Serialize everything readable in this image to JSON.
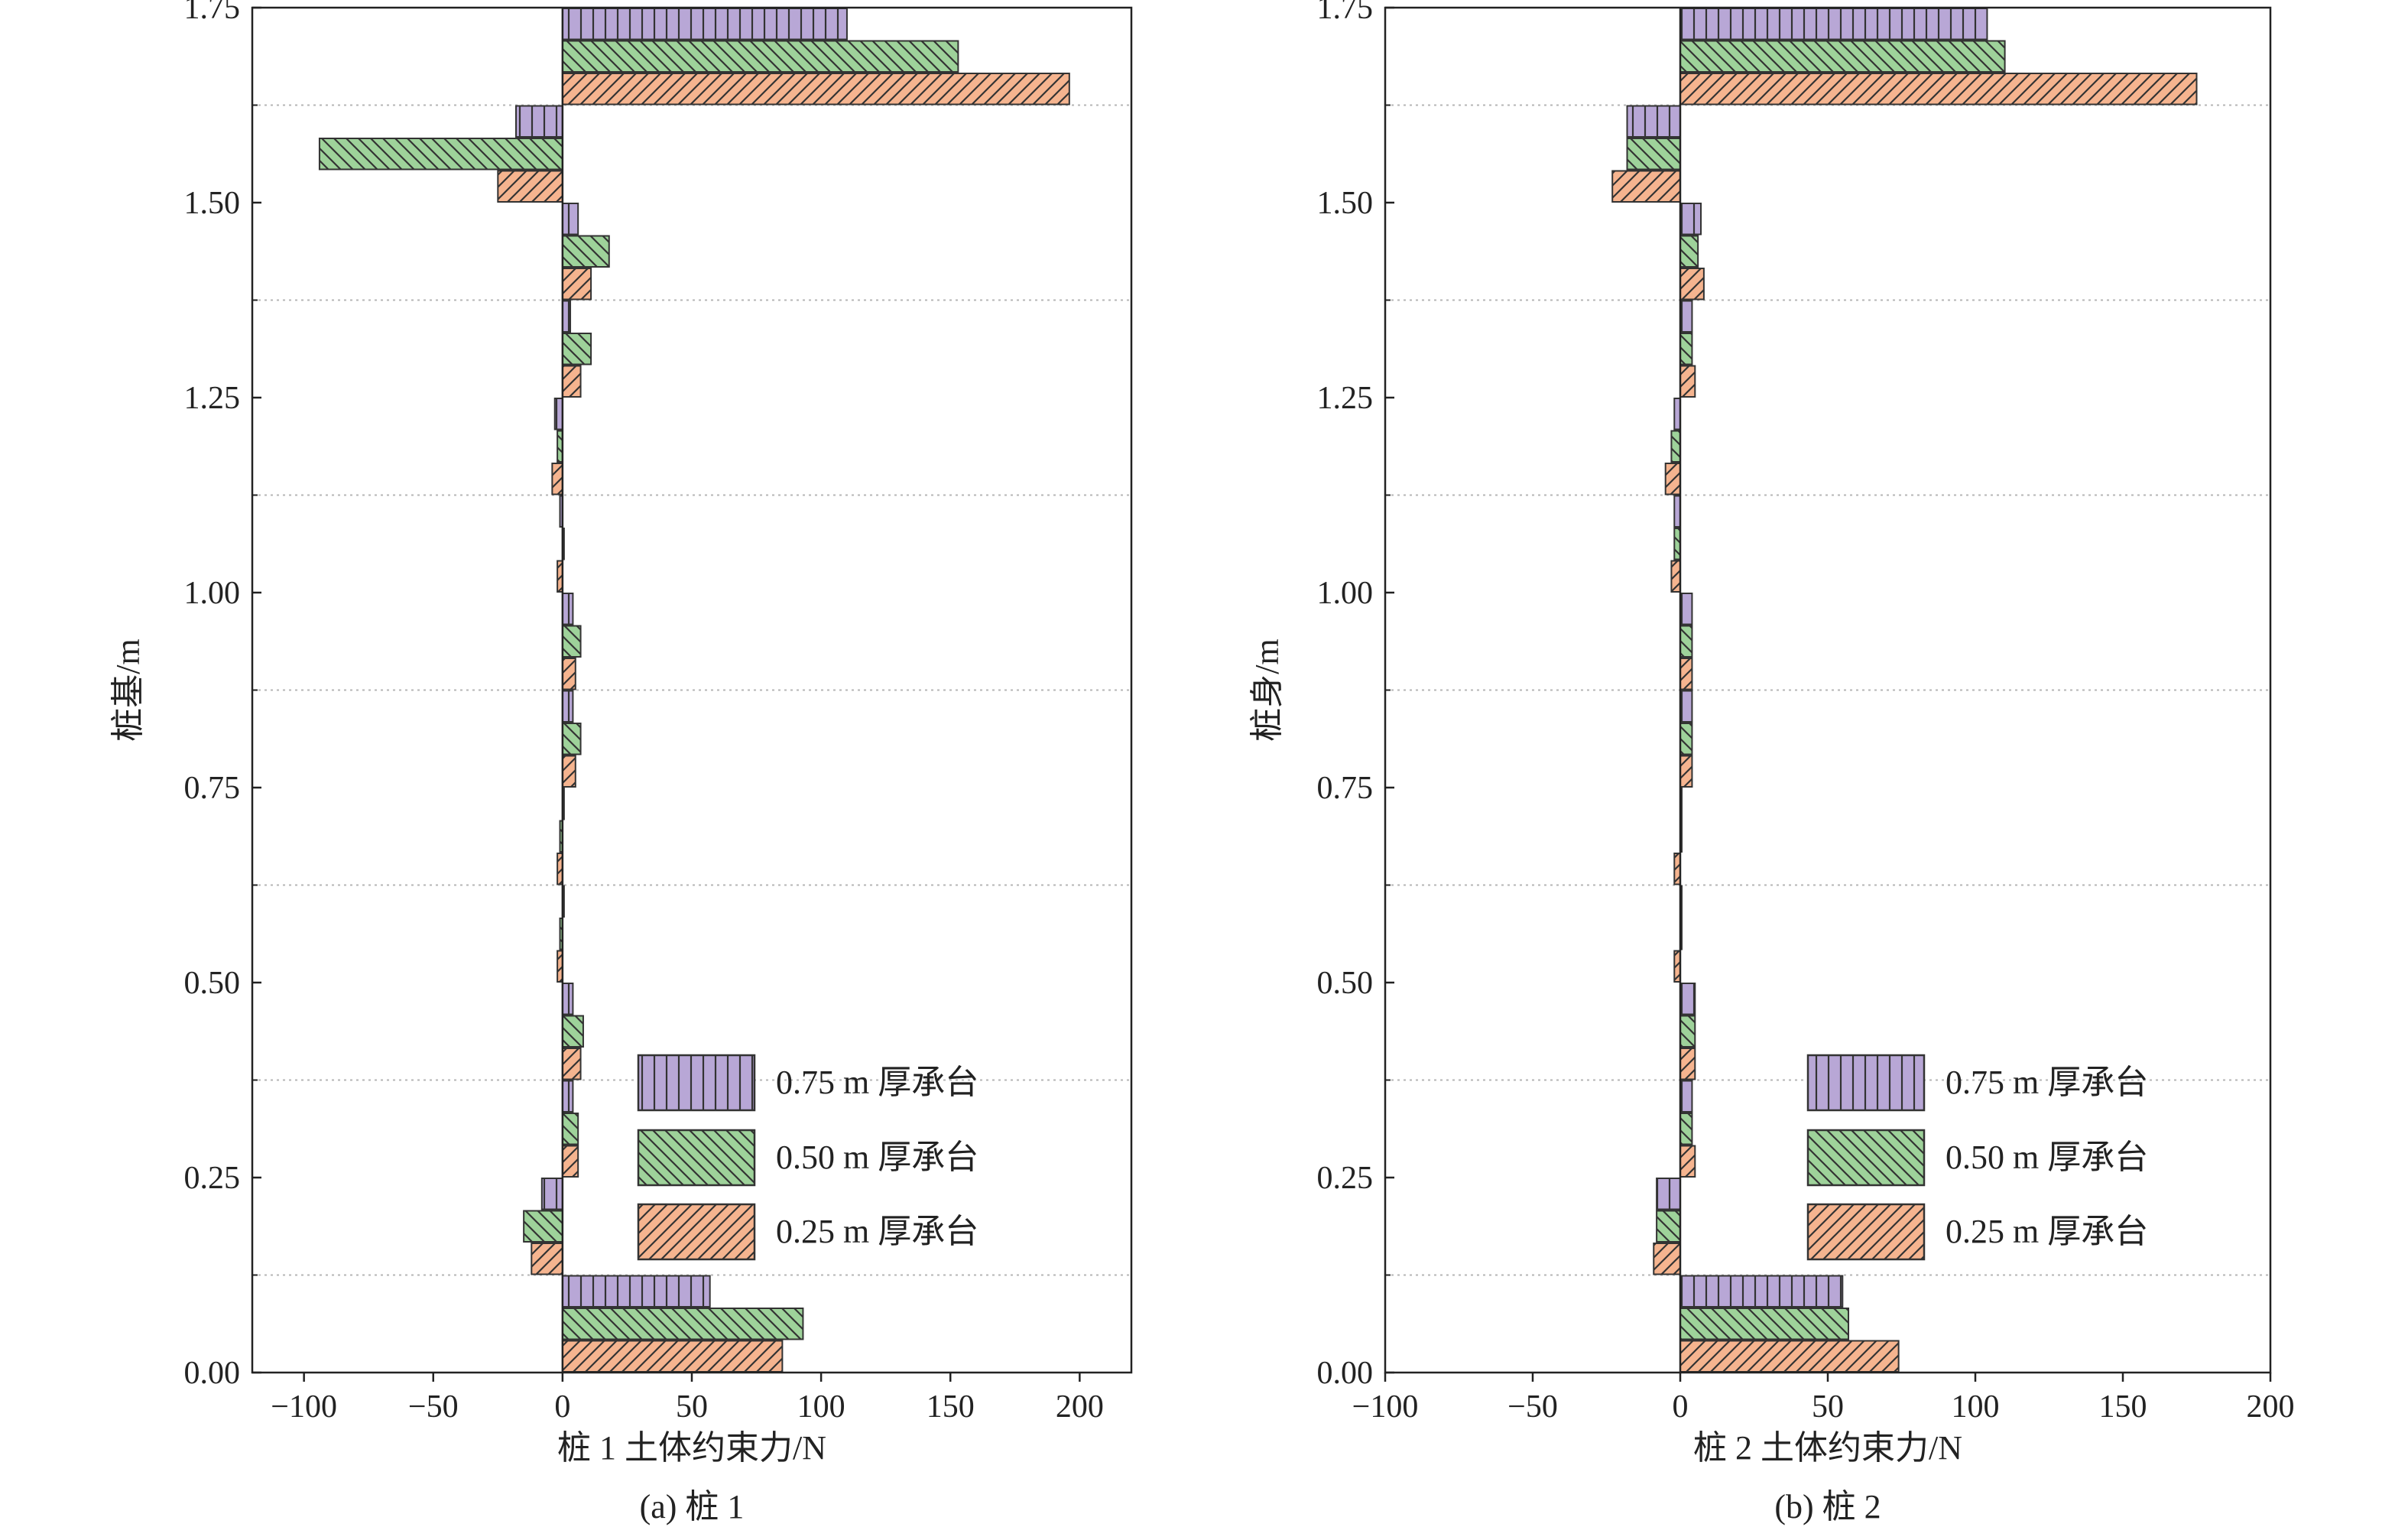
{
  "chart_data": [
    {
      "id": "a",
      "type": "bar",
      "orientation": "horizontal",
      "caption": "(a) 桩 1",
      "xlabel": "桩 1 土体约束力/N",
      "ylabel": "桩基/m",
      "xlim": [
        -120,
        220
      ],
      "ylim": [
        0,
        1.75
      ],
      "xticks": [
        "−100",
        "−50",
        "0",
        "50",
        "100",
        "150",
        "200"
      ],
      "yticks": [
        "0.00",
        "0.25",
        "0.50",
        "0.75",
        "1.00",
        "1.25",
        "1.50",
        "1.75"
      ],
      "grid": "horizontal dotted",
      "legend_position": "lower-right",
      "categories": [
        0.0625,
        0.1875,
        0.3125,
        0.4375,
        0.5625,
        0.6875,
        0.8125,
        0.9375,
        1.0625,
        1.1875,
        1.3125,
        1.4375,
        1.5625,
        1.6875
      ],
      "series": [
        {
          "name": "0.75 m 厚承台",
          "color": "#b8a7d6",
          "pattern": "vertical",
          "values": [
            57,
            -8,
            4,
            4,
            0,
            0,
            4,
            4,
            -1,
            -3,
            3,
            6,
            -18,
            110
          ]
        },
        {
          "name": "0.50 m 厚承台",
          "color": "#9ed29a",
          "pattern": "backslash",
          "values": [
            93,
            -15,
            6,
            8,
            -1,
            -1,
            7,
            7,
            0,
            -2,
            11,
            18,
            -94,
            153
          ]
        },
        {
          "name": "0.25 m 厚承台",
          "color": "#f5b48f",
          "pattern": "slash",
          "values": [
            85,
            -12,
            6,
            7,
            -2,
            -2,
            5,
            5,
            -2,
            -4,
            7,
            11,
            -25,
            196
          ]
        }
      ]
    },
    {
      "id": "b",
      "type": "bar",
      "orientation": "horizontal",
      "caption": "(b) 桩 2",
      "xlabel": "桩 2 土体约束力/N",
      "ylabel": "桩身/m",
      "xlim": [
        -100,
        200
      ],
      "ylim": [
        0,
        1.75
      ],
      "xticks": [
        "−100",
        "−50",
        "0",
        "50",
        "100",
        "150",
        "200"
      ],
      "yticks": [
        "0.00",
        "0.25",
        "0.50",
        "0.75",
        "1.00",
        "1.25",
        "1.50",
        "1.75"
      ],
      "grid": "horizontal dotted",
      "legend_position": "lower-right",
      "categories": [
        0.0625,
        0.1875,
        0.3125,
        0.4375,
        0.5625,
        0.6875,
        0.8125,
        0.9375,
        1.0625,
        1.1875,
        1.3125,
        1.4375,
        1.5625,
        1.6875
      ],
      "series": [
        {
          "name": "0.75 m 厚承台",
          "color": "#b8a7d6",
          "pattern": "vertical",
          "values": [
            55,
            -8,
            4,
            5,
            0,
            0,
            4,
            4,
            -2,
            -2,
            4,
            7,
            -18,
            104
          ]
        },
        {
          "name": "0.50 m 厚承台",
          "color": "#9ed29a",
          "pattern": "backslash",
          "values": [
            57,
            -8,
            4,
            5,
            0,
            0,
            4,
            4,
            -2,
            -3,
            4,
            6,
            -18,
            110
          ]
        },
        {
          "name": "0.25 m 厚承台",
          "color": "#f5b48f",
          "pattern": "slash",
          "values": [
            74,
            -9,
            5,
            5,
            -2,
            -2,
            4,
            4,
            -3,
            -5,
            5,
            8,
            -23,
            175
          ]
        }
      ]
    }
  ]
}
